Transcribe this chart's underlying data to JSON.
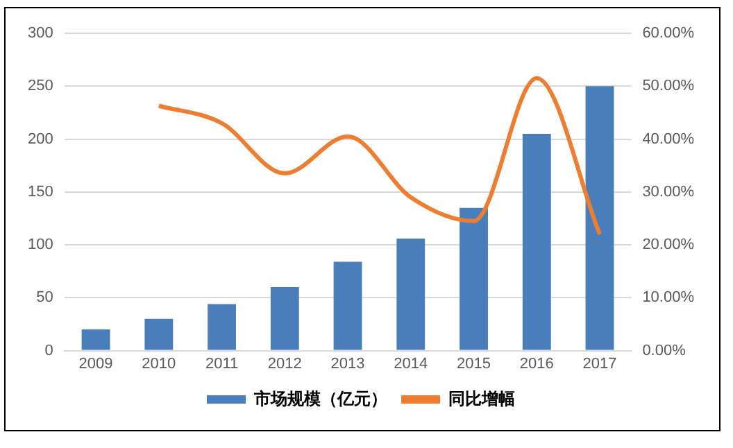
{
  "chart_data": {
    "type": "bar",
    "categories": [
      "2009",
      "2010",
      "2011",
      "2012",
      "2013",
      "2014",
      "2015",
      "2016",
      "2017"
    ],
    "series": [
      {
        "name": "市场规模（亿元）",
        "color": "#4a7ebb",
        "values": [
          20,
          30,
          44,
          60,
          84,
          106,
          135,
          205,
          250
        ]
      },
      {
        "name": "同比增幅",
        "type": "line",
        "axis": "y2",
        "color": "#ed7d31",
        "values": [
          null,
          46.3,
          43,
          33.5,
          40.5,
          29,
          24.5,
          51.5,
          22
        ]
      }
    ],
    "ylim": [
      0,
      300
    ],
    "yticks": [
      0,
      50,
      100,
      150,
      200,
      250,
      300
    ],
    "y2lim": [
      0,
      60
    ],
    "y2ticks": [
      {
        "value": 0,
        "label": "0.00%"
      },
      {
        "value": 10,
        "label": "10.00%"
      },
      {
        "value": 20,
        "label": "20.00%"
      },
      {
        "value": 30,
        "label": "30.00%"
      },
      {
        "value": 40,
        "label": "40.00%"
      },
      {
        "value": 50,
        "label": "50.00%"
      },
      {
        "value": 60,
        "label": "60.00%"
      }
    ],
    "grid": "y",
    "legend": "bottom",
    "marker": "none"
  }
}
